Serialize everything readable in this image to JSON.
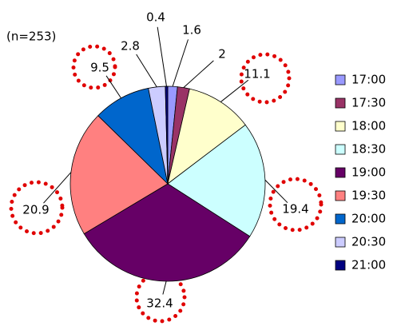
{
  "chart_data": {
    "type": "pie",
    "annotation": "(n=253)",
    "categories": [
      "17:00",
      "17:30",
      "18:00",
      "18:30",
      "19:00",
      "19:30",
      "20:00",
      "20:30",
      "21:00"
    ],
    "values": [
      1.6,
      2.0,
      11.1,
      19.4,
      32.4,
      20.9,
      9.5,
      2.8,
      0.4
    ],
    "colors": [
      "#9999ff",
      "#993366",
      "#ffffcc",
      "#ccffff",
      "#660066",
      "#ff8080",
      "#0066cc",
      "#ccccff",
      "#000080"
    ],
    "legend": "right"
  }
}
